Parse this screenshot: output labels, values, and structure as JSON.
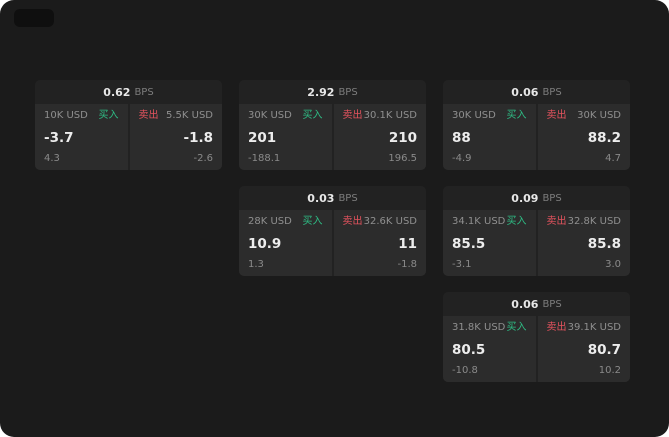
{
  "colors": {
    "buy": "#2ebd85",
    "sell": "#e5535e",
    "bg": "#1b1b1b"
  },
  "cards": [
    {
      "bps": "0.62",
      "bps_unit": "BPS",
      "buy": {
        "amount": "10K USD",
        "label": "买入",
        "price": "-3.7",
        "delta": "4.3"
      },
      "sell": {
        "label": "卖出",
        "amount": "5.5K USD",
        "price": "-1.8",
        "delta": "-2.6"
      }
    },
    {
      "bps": "2.92",
      "bps_unit": "BPS",
      "buy": {
        "amount": "30K USD",
        "label": "买入",
        "price": "201",
        "delta": "-188.1"
      },
      "sell": {
        "label": "卖出",
        "amount": "30.1K USD",
        "price": "210",
        "delta": "196.5"
      }
    },
    {
      "bps": "0.06",
      "bps_unit": "BPS",
      "buy": {
        "amount": "30K USD",
        "label": "买入",
        "price": "88",
        "delta": "-4.9"
      },
      "sell": {
        "label": "卖出",
        "amount": "30K USD",
        "price": "88.2",
        "delta": "4.7"
      }
    },
    {
      "bps": "0.03",
      "bps_unit": "BPS",
      "buy": {
        "amount": "28K USD",
        "label": "买入",
        "price": "10.9",
        "delta": "1.3"
      },
      "sell": {
        "label": "卖出",
        "amount": "32.6K USD",
        "price": "11",
        "delta": "-1.8"
      }
    },
    {
      "bps": "0.09",
      "bps_unit": "BPS",
      "buy": {
        "amount": "34.1K USD",
        "label": "买入",
        "price": "85.5",
        "delta": "-3.1"
      },
      "sell": {
        "label": "卖出",
        "amount": "32.8K USD",
        "price": "85.8",
        "delta": "3.0"
      }
    },
    {
      "bps": "0.06",
      "bps_unit": "BPS",
      "buy": {
        "amount": "31.8K USD",
        "label": "买入",
        "price": "80.5",
        "delta": "-10.8"
      },
      "sell": {
        "label": "卖出",
        "amount": "39.1K USD",
        "price": "80.7",
        "delta": "10.2"
      }
    }
  ]
}
